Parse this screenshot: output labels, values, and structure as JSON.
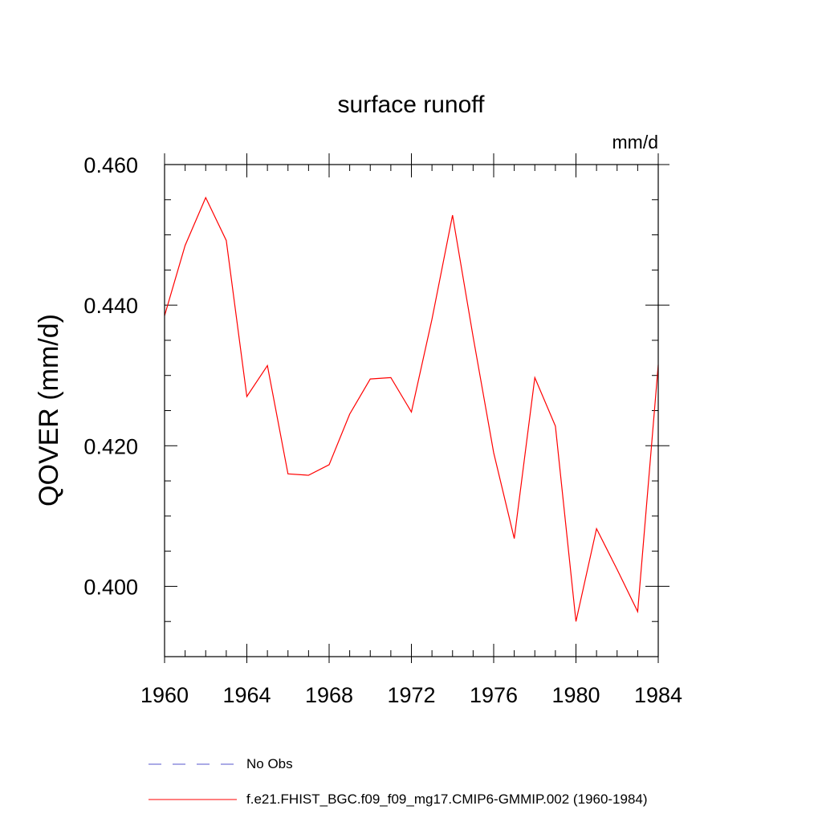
{
  "chart_data": {
    "type": "line",
    "title": "surface runoff",
    "units_label": "mm/d",
    "ylabel": "QOVER  (mm/d)",
    "xlabel": "",
    "xlim": [
      1960,
      1984
    ],
    "ylim": [
      0.39,
      0.46
    ],
    "x_ticks": [
      1960,
      1964,
      1968,
      1972,
      1976,
      1980,
      1984
    ],
    "x_tick_labels": [
      "1960",
      "1964",
      "1968",
      "1972",
      "1976",
      "1980",
      "1984"
    ],
    "y_ticks": [
      0.4,
      0.42,
      0.44,
      0.46
    ],
    "y_tick_labels": [
      "0.400",
      "0.420",
      "0.440",
      "0.460"
    ],
    "y_minor_step": 0.005,
    "x_minor_step": 1,
    "grid": false,
    "legend_position": "bottom",
    "series": [
      {
        "name": "No Obs",
        "color": "#5555cc",
        "style": "dashed",
        "x": [],
        "y": []
      },
      {
        "name": "f.e21.FHIST_BGC.f09_f09_mg17.CMIP6-GMMIP.002 (1960-1984)",
        "color": "#ff0000",
        "style": "solid",
        "x": [
          1960,
          1961,
          1962,
          1963,
          1964,
          1965,
          1966,
          1967,
          1968,
          1969,
          1970,
          1971,
          1972,
          1973,
          1974,
          1975,
          1976,
          1977,
          1978,
          1979,
          1980,
          1981,
          1982,
          1983,
          1984
        ],
        "y": [
          0.4385,
          0.4485,
          0.4553,
          0.4492,
          0.427,
          0.4314,
          0.416,
          0.4158,
          0.4173,
          0.4245,
          0.4295,
          0.4297,
          0.4248,
          0.438,
          0.4528,
          0.4355,
          0.419,
          0.4068,
          0.4297,
          0.4228,
          0.395,
          0.4082,
          0.4024,
          0.3964,
          0.4315
        ]
      }
    ]
  }
}
